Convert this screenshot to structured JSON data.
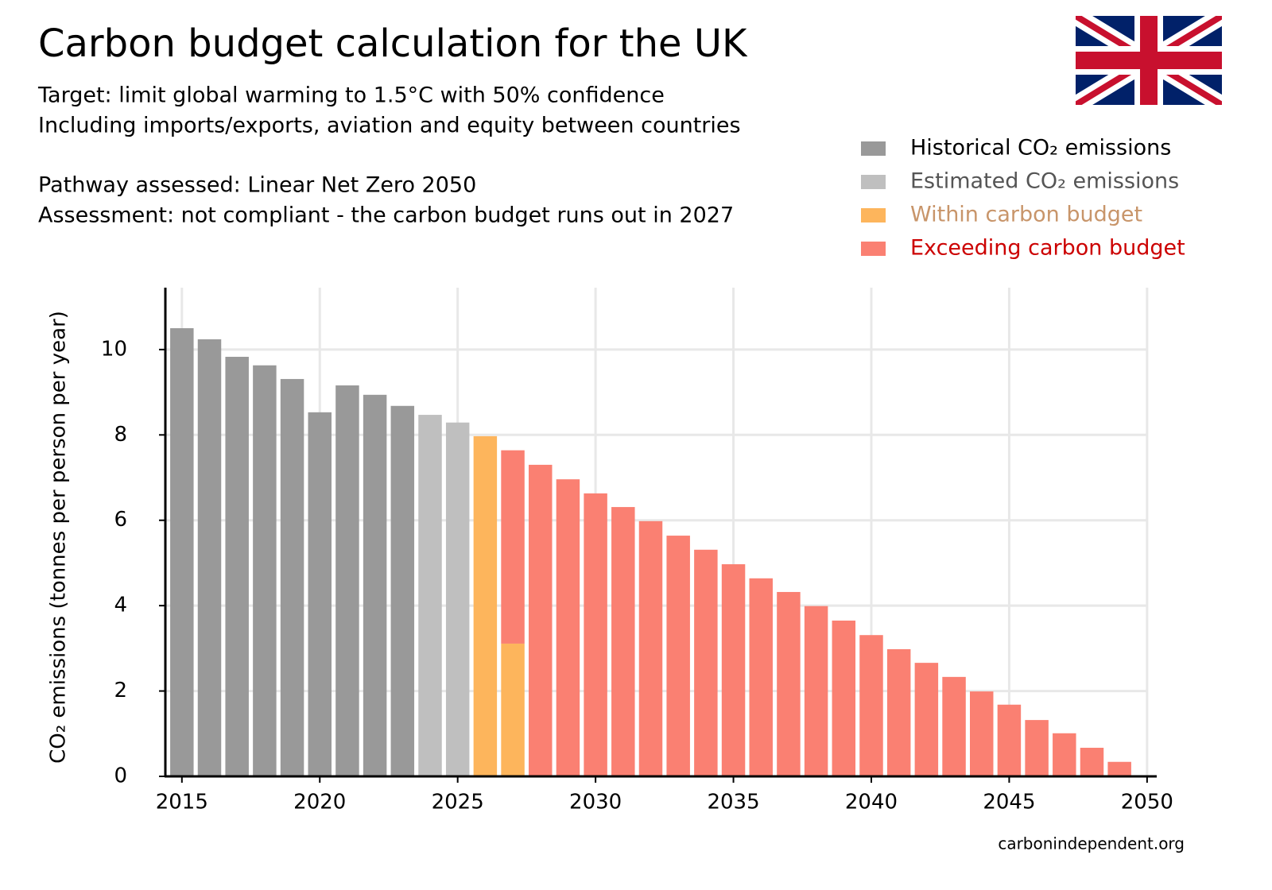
{
  "chart_data": {
    "type": "stacked_bar",
    "title": "Carbon budget calculation for the UK",
    "notes": [
      "Target: limit global warming to 1.5°C with 50% confidence",
      "Including imports/exports, aviation and equity between countries",
      "Pathway assessed: Linear Net Zero 2050",
      "Assessment: not compliant - the carbon budget runs out in 2027"
    ],
    "y_label": "CO₂ emissions (tonnes per person per year)",
    "source": "carbonindependent.org",
    "x": [
      2015,
      2016,
      2017,
      2018,
      2019,
      2020,
      2021,
      2022,
      2023,
      2024,
      2025,
      2026,
      2027,
      2028,
      2029,
      2030,
      2031,
      2032,
      2033,
      2034,
      2035,
      2036,
      2037,
      2038,
      2039,
      2040,
      2041,
      2042,
      2043,
      2044,
      2045,
      2046,
      2047,
      2048,
      2049,
      2050
    ],
    "series": [
      {
        "name": "Historical CO₂ emissions",
        "color": "#999999",
        "label_color": "#000000",
        "values": [
          10.5,
          10.24,
          9.83,
          9.63,
          9.31,
          8.53,
          9.16,
          8.94,
          8.68,
          null,
          null,
          null,
          null,
          null,
          null,
          null,
          null,
          null,
          null,
          null,
          null,
          null,
          null,
          null,
          null,
          null,
          null,
          null,
          null,
          null,
          null,
          null,
          null,
          null,
          null,
          null
        ]
      },
      {
        "name": "Estimated CO₂ emissions",
        "color": "#bfbfbf",
        "label_color": "#555555",
        "values": [
          null,
          null,
          null,
          null,
          null,
          null,
          null,
          null,
          null,
          8.47,
          8.29,
          null,
          null,
          null,
          null,
          null,
          null,
          null,
          null,
          null,
          null,
          null,
          null,
          null,
          null,
          null,
          null,
          null,
          null,
          null,
          null,
          null,
          null,
          null,
          null,
          null
        ]
      },
      {
        "name": "Within carbon budget",
        "color": "#fdb55c",
        "label_color": "#c8956a",
        "values": [
          null,
          null,
          null,
          null,
          null,
          null,
          null,
          null,
          null,
          null,
          null,
          7.97,
          3.11,
          null,
          null,
          null,
          null,
          null,
          null,
          null,
          null,
          null,
          null,
          null,
          null,
          null,
          null,
          null,
          null,
          null,
          null,
          null,
          null,
          null,
          null,
          null
        ]
      },
      {
        "name": "Exceeding carbon budget",
        "color": "#fa8072",
        "label_color": "#cc0000",
        "values": [
          null,
          null,
          null,
          null,
          null,
          null,
          null,
          null,
          null,
          null,
          null,
          null,
          4.53,
          7.3,
          6.96,
          6.63,
          6.31,
          5.98,
          5.64,
          5.31,
          4.97,
          4.64,
          4.32,
          3.99,
          3.65,
          3.31,
          2.98,
          2.66,
          2.33,
          1.99,
          1.68,
          1.32,
          1.01,
          0.67,
          0.34,
          0
        ]
      }
    ],
    "xlim": [
      2014.4,
      2050.35
    ],
    "ylim": [
      0,
      11.45
    ],
    "xticks": [
      2015,
      2020,
      2025,
      2030,
      2035,
      2040,
      2045,
      2050
    ],
    "yticks": [
      0,
      2,
      4,
      6,
      8,
      10
    ],
    "grid": true
  }
}
